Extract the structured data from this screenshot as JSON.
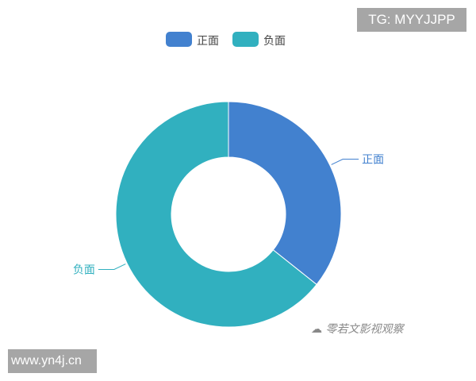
{
  "chart_data": {
    "type": "pie",
    "variant": "donut",
    "categories": [
      "正面",
      "负面"
    ],
    "values": [
      35.7,
      64.3
    ],
    "colors": [
      "#4281cf",
      "#31b0bf"
    ],
    "legend": {
      "position": "top",
      "entries": [
        "正面",
        "负面"
      ]
    },
    "labels": [
      "正面",
      "负面"
    ]
  },
  "overlays": {
    "tg_badge": "TG: MYYJJPP",
    "url_badge": "www.yn4j.cn",
    "watermark": "零若文影视观察"
  }
}
